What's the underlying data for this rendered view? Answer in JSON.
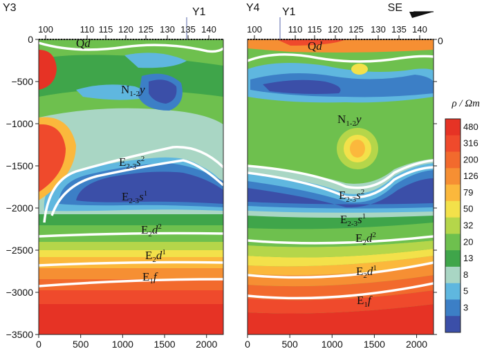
{
  "chart_data": {
    "type": "heatmap",
    "panels": [
      {
        "id": "Y3",
        "title": "Y3",
        "well_marker": "Y1",
        "top_axis_ticks": [
          "100",
          "110",
          "115",
          "120",
          "125",
          "130",
          "135",
          "140"
        ],
        "x_ticks": [
          0,
          500,
          1000,
          1500,
          2000
        ],
        "xlim": [
          0,
          2200
        ],
        "units": [
          {
            "base": "Q",
            "ital": "d",
            "sub": "",
            "sup": ""
          },
          {
            "base": "N",
            "ital": "",
            "sub": "1-2",
            "after": "y",
            "sup": ""
          },
          {
            "base": "E",
            "ital": "",
            "sub": "2-3",
            "after": "s",
            "sup": "2"
          },
          {
            "base": "E",
            "ital": "",
            "sub": "2-3",
            "after": "s",
            "sup": "1"
          },
          {
            "base": "E",
            "ital": "",
            "sub": "2",
            "after": "d",
            "sup": "2"
          },
          {
            "base": "E",
            "ital": "",
            "sub": "2",
            "after": "d",
            "sup": "1"
          },
          {
            "base": "E",
            "ital": "",
            "sub": "1",
            "after": "f",
            "sup": ""
          }
        ]
      },
      {
        "id": "Y4",
        "title": "Y4",
        "well_marker": "Y1",
        "direction": "SE",
        "top_axis_ticks": [
          "100",
          "110",
          "115",
          "120",
          "125",
          "130",
          "135",
          "140"
        ],
        "x_ticks": [
          0,
          500,
          1000,
          1500,
          2000
        ],
        "xlim": [
          0,
          2200
        ],
        "units": [
          {
            "base": "Q",
            "ital": "d",
            "sub": "",
            "sup": ""
          },
          {
            "base": "N",
            "ital": "",
            "sub": "1-2",
            "after": "y",
            "sup": ""
          },
          {
            "base": "E",
            "ital": "",
            "sub": "2-3",
            "after": "s",
            "sup": "2"
          },
          {
            "base": "E",
            "ital": "",
            "sub": "2-3",
            "after": "s",
            "sup": "1"
          },
          {
            "base": "E",
            "ital": "",
            "sub": "2",
            "after": "d",
            "sup": "2"
          },
          {
            "base": "E",
            "ital": "",
            "sub": "2",
            "after": "d",
            "sup": "1"
          },
          {
            "base": "E",
            "ital": "",
            "sub": "1",
            "after": "f",
            "sup": ""
          }
        ]
      }
    ],
    "y_ticks": [
      0,
      -500,
      -1000,
      -1500,
      -2000,
      -2500,
      -3000,
      -3500
    ],
    "ylim": [
      -3500,
      0
    ],
    "y_tick_labels_right_panel_top": "0",
    "colorbar": {
      "label": "ρ / Ωm",
      "levels": [
        "480",
        "316",
        "200",
        "126",
        "79",
        "50",
        "32",
        "20",
        "13",
        "8",
        "5",
        "3"
      ],
      "colors": [
        "#e63325",
        "#ef4a2c",
        "#f26a2d",
        "#f68f33",
        "#fbb83c",
        "#f3e14a",
        "#b5d64a",
        "#6ec04e",
        "#3fa54a",
        "#a9d6c4",
        "#5fb7df",
        "#3c7fc6",
        "#3b4fa8"
      ]
    }
  }
}
